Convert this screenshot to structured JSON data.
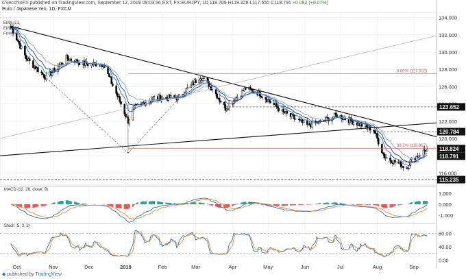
{
  "header": {
    "author": "CVecchioFX",
    "published_text": "published on TradingView.com, September 12, 2019 09:03:36 EST",
    "symbol": "FX:EURJPY, 1D",
    "ohlc": "118.709 H119.328 L117.550 C118.791",
    "change": "+0.082 (+0.07%)",
    "instrument": "Euro / Japanese Yen, 1D, FXCM"
  },
  "ema_labels": [
    "EMA (21,",
    "EMA (13,",
    "EMA (8,"
  ],
  "panes": {
    "macd_label": "MACD (12, 26, close, 9)",
    "stoch_label": "Stoch (5, 3, 3)"
  },
  "footer": {
    "brand": "TradingView"
  },
  "colors": {
    "candle": "#000000",
    "ema8": "#2a73c4",
    "ema13": "#1a3e8a",
    "ema21": "#7f9fd4",
    "trendline": "#111111",
    "fib_line": "#e05050",
    "macd_line": "#2a73c4",
    "signal_line": "#e98b2a",
    "hist_pos": "#26a69a",
    "hist_neg": "#ef5350",
    "price_tag": "#111111"
  },
  "chart_data": [
    {
      "type": "candlestick",
      "title": "Euro / Japanese Yen, 1D, FXCM",
      "x_ticks": [
        "Oct",
        "Nov",
        "Dec",
        "2019",
        "Feb",
        "Mar",
        "Apr",
        "May",
        "Jun",
        "Jul",
        "Aug",
        "Sep"
      ],
      "y_ticks": [
        "134.000",
        "132.000",
        "130.000",
        "128.000",
        "126.000",
        "124.000",
        "122.000",
        "120.000",
        "118.000",
        "116.000"
      ],
      "ylim": [
        114.6,
        134.6
      ],
      "price_tags": [
        "123.652",
        "120.784",
        "118.824",
        "118.791",
        "115.235"
      ],
      "horizontal_levels": [
        123.652,
        120.784,
        118.824,
        115.235
      ],
      "fib_labels": [
        "0.00% (127.502)",
        "38.2% (118.867)"
      ],
      "fib_levels": [
        127.502,
        118.867
      ],
      "trend_points": [
        [
          "2018-09-26",
          133.0
        ],
        [
          "2018-10-09",
          129.3
        ],
        [
          "2018-10-26",
          127.0
        ],
        [
          "2018-11-12",
          129.3
        ],
        [
          "2018-11-28",
          128.6
        ],
        [
          "2018-12-13",
          128.6
        ],
        [
          "2018-12-28",
          124.0
        ],
        [
          "2019-01-03",
          122.0
        ],
        [
          "2019-01-08",
          123.5
        ],
        [
          "2019-01-24",
          124.7
        ],
        [
          "2019-02-14",
          124.7
        ],
        [
          "2019-03-05",
          127.2
        ],
        [
          "2019-03-15",
          125.8
        ],
        [
          "2019-03-26",
          123.5
        ],
        [
          "2019-04-12",
          125.8
        ],
        [
          "2019-04-24",
          125.2
        ],
        [
          "2019-05-14",
          123.0
        ],
        [
          "2019-06-03",
          121.5
        ],
        [
          "2019-06-14",
          121.9
        ],
        [
          "2019-06-28",
          122.7
        ],
        [
          "2019-07-12",
          121.9
        ],
        [
          "2019-07-29",
          121.0
        ],
        [
          "2019-08-07",
          117.9
        ],
        [
          "2019-08-26",
          116.6
        ],
        [
          "2019-08-29",
          117.4
        ],
        [
          "2019-09-12",
          118.791
        ]
      ]
    },
    {
      "type": "line",
      "title": "MACD (12, 26, close, 9)",
      "y_ticks": [
        "1.000",
        "0.000",
        "-1.000"
      ],
      "ylim": [
        -1.5,
        1.5
      ]
    },
    {
      "type": "line",
      "title": "Stoch (5, 3, 3)",
      "y_ticks": [
        "80.00",
        "40.00",
        "0.00"
      ],
      "ylim": [
        -5,
        105
      ],
      "levels": [
        80,
        20
      ]
    }
  ]
}
